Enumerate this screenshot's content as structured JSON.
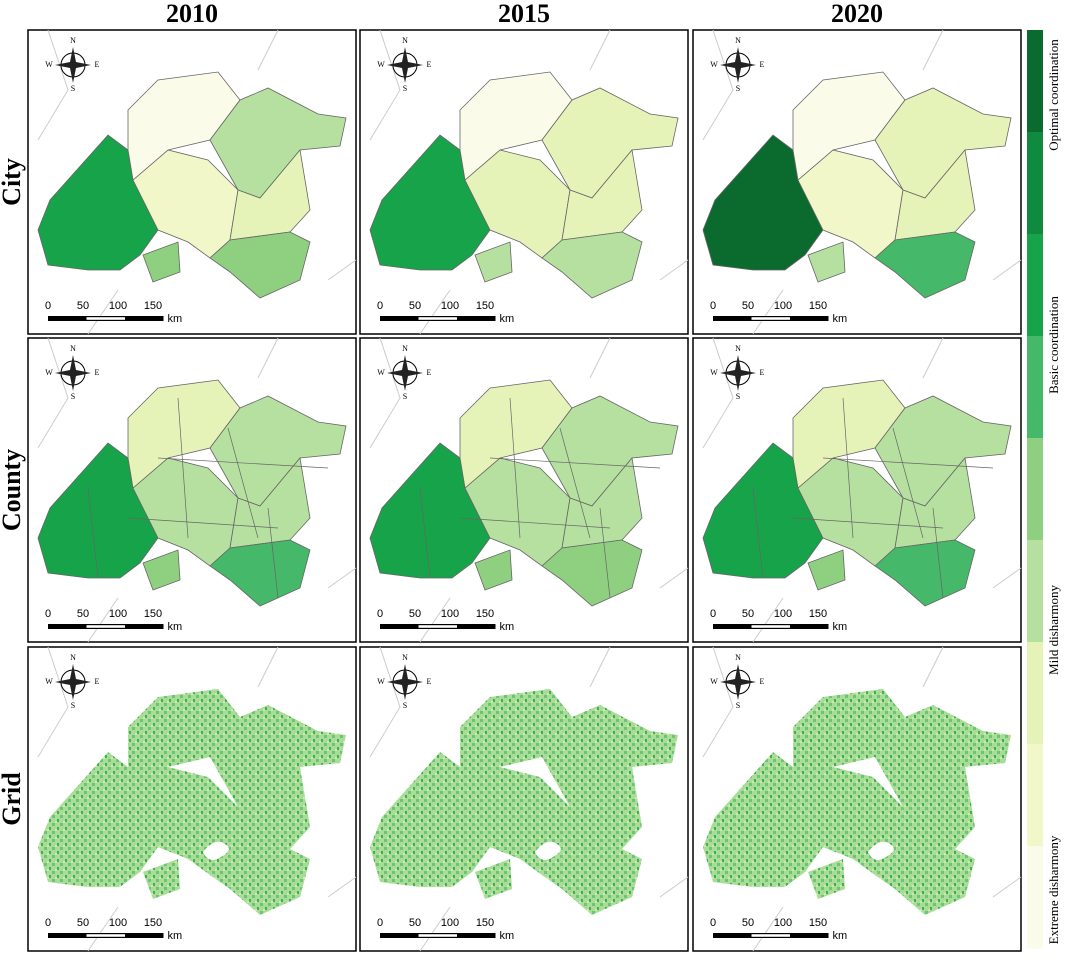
{
  "columns": [
    "2010",
    "2015",
    "2020"
  ],
  "rows": [
    "City",
    "County",
    "Grid"
  ],
  "compass": {
    "n": "N",
    "e": "E",
    "s": "S",
    "w": "W"
  },
  "scale_bar": {
    "ticks": [
      "0",
      "50",
      "100",
      "150"
    ],
    "unit": "km"
  },
  "legend": {
    "labels": [
      "Optimal coordination",
      "Basic coordination",
      "Mild disharmony",
      "Extreme disharmony"
    ],
    "colors": [
      "#0b6b2e",
      "#0f8a3e",
      "#16a34a",
      "#45b86a",
      "#8fd080",
      "#b6e0a0",
      "#e6f3b8",
      "#f1f7c8",
      "#fbfbea"
    ]
  }
}
